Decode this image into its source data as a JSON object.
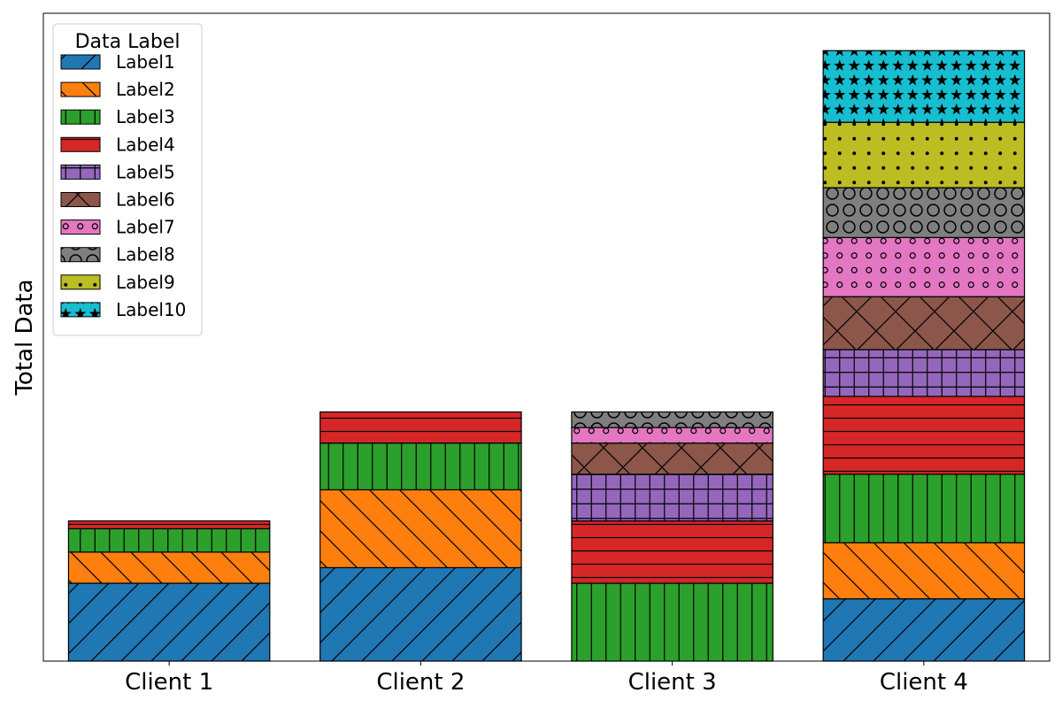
{
  "chart_data": {
    "type": "bar",
    "stacked": true,
    "title": "",
    "xlabel": "",
    "ylabel": "Total Data",
    "categories": [
      "Client 1",
      "Client 2",
      "Client 3",
      "Client 4"
    ],
    "ylim": [
      0,
      2080
    ],
    "y_ticks_visible": false,
    "grid": false,
    "legend": {
      "title": "Data Label",
      "placement": "top-left"
    },
    "series": [
      {
        "name": "Label1",
        "values": [
          250,
          300,
          0,
          200
        ],
        "color": "#1f77b4",
        "hatch": "forward-slash"
      },
      {
        "name": "Label2",
        "values": [
          100,
          250,
          0,
          180
        ],
        "color": "#ff7f0e",
        "hatch": "back-slash"
      },
      {
        "name": "Label3",
        "values": [
          75,
          150,
          250,
          220
        ],
        "color": "#2ca02c",
        "hatch": "vertical-lines"
      },
      {
        "name": "Label4",
        "values": [
          25,
          100,
          200,
          250
        ],
        "color": "#d62728",
        "hatch": "horizontal-lines"
      },
      {
        "name": "Label5",
        "values": [
          0,
          0,
          150,
          150
        ],
        "color": "#9467bd",
        "hatch": "grid"
      },
      {
        "name": "Label6",
        "values": [
          0,
          0,
          100,
          170
        ],
        "color": "#8c564b",
        "hatch": "crosshatch"
      },
      {
        "name": "Label7",
        "values": [
          0,
          0,
          50,
          190
        ],
        "color": "#e377c2",
        "hatch": "small-circles"
      },
      {
        "name": "Label8",
        "values": [
          0,
          0,
          50,
          160
        ],
        "color": "#7f7f7f",
        "hatch": "large-circles"
      },
      {
        "name": "Label9",
        "values": [
          0,
          0,
          0,
          210
        ],
        "color": "#bcbd22",
        "hatch": "dots"
      },
      {
        "name": "Label10",
        "values": [
          0,
          0,
          0,
          230
        ],
        "color": "#17becf",
        "hatch": "stars"
      }
    ]
  }
}
